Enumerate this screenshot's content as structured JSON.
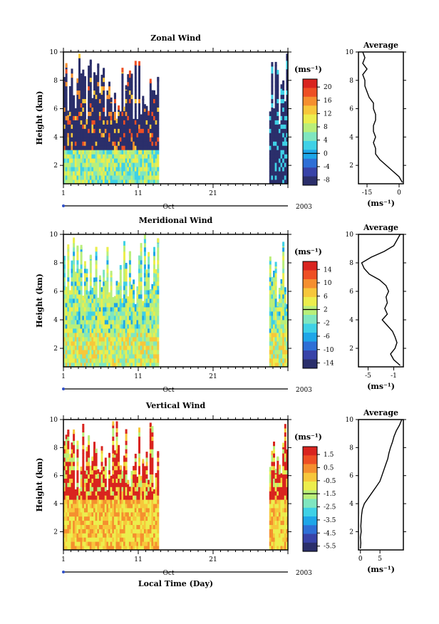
{
  "figure": {
    "x_axis_label": "Local Time (Day)",
    "month_label": "Oct",
    "year_label": "2003",
    "x_ticks": [
      "1",
      "11",
      "21"
    ]
  },
  "chart_data": [
    {
      "type": "heatmap",
      "title": "Zonal Wind",
      "ylabel": "Height (km)",
      "y_ticks": [
        "2",
        "4",
        "6",
        "8",
        "10"
      ],
      "ylim": [
        0.7,
        10
      ],
      "xlim": [
        1,
        31
      ],
      "data_coverage_days": [
        [
          1,
          13.7
        ],
        [
          28.5,
          31
        ]
      ],
      "colorbar": {
        "unit": "(ms⁻¹)",
        "ticks": [
          "20",
          "16",
          "12",
          "8",
          "4",
          "0",
          "-4",
          "-8"
        ],
        "range": [
          -10,
          22
        ]
      },
      "profile": {
        "title": "Average",
        "xlabel": "(ms⁻¹)",
        "x_ticks": [
          "-15",
          "0"
        ],
        "y_ticks": [
          "2",
          "4",
          "6",
          "8",
          "10"
        ],
        "xlim": [
          -19,
          2
        ],
        "heights": [
          0.8,
          1.2,
          1.6,
          2.0,
          2.4,
          2.8,
          3.2,
          3.6,
          4.0,
          4.4,
          4.8,
          5.2,
          5.6,
          6.0,
          6.4,
          6.8,
          7.2,
          7.6,
          8.0,
          8.4,
          8.8,
          9.2,
          9.6,
          10.0
        ],
        "values": [
          1.5,
          0,
          -3,
          -6,
          -9,
          -11,
          -11,
          -12,
          -11,
          -12,
          -12,
          -11,
          -11,
          -12,
          -12,
          -14,
          -15,
          -16,
          -16,
          -17,
          -15,
          -17,
          -16,
          -17
        ]
      }
    },
    {
      "type": "heatmap",
      "title": "Meridional Wind",
      "ylabel": "Height (km)",
      "y_ticks": [
        "2",
        "4",
        "6",
        "8",
        "10"
      ],
      "ylim": [
        0.7,
        10
      ],
      "xlim": [
        1,
        31
      ],
      "data_coverage_days": [
        [
          1,
          13.7
        ],
        [
          28.5,
          31
        ]
      ],
      "colorbar": {
        "unit": "(ms⁻¹)",
        "ticks": [
          "14",
          "10",
          "6",
          "2",
          "-2",
          "-6",
          "-10",
          "-14"
        ],
        "range": [
          -16,
          16
        ]
      },
      "profile": {
        "title": "Average",
        "xlabel": "(ms⁻¹)",
        "x_ticks": [
          "-5",
          "-1"
        ],
        "y_ticks": [
          "2",
          "4",
          "6",
          "8",
          "10"
        ],
        "xlim": [
          -6.5,
          0.5
        ],
        "heights": [
          0.8,
          1.2,
          1.6,
          2.0,
          2.4,
          2.8,
          3.2,
          3.6,
          4.0,
          4.4,
          4.8,
          5.2,
          5.6,
          6.0,
          6.4,
          6.8,
          7.2,
          7.6,
          8.0,
          8.4,
          8.8,
          9.2,
          9.6,
          10.0
        ],
        "values": [
          0,
          -1,
          -1.5,
          -0.8,
          -0.5,
          -0.8,
          -1.2,
          -2,
          -2.8,
          -2.0,
          -2.4,
          -2.0,
          -2.2,
          -1.8,
          -2.2,
          -3.2,
          -4.8,
          -5.6,
          -6.0,
          -4.5,
          -2.5,
          -1.0,
          -0.5,
          0
        ]
      }
    },
    {
      "type": "heatmap",
      "title": "Vertical Wind",
      "ylabel": "Height (km)",
      "y_ticks": [
        "2",
        "4",
        "6",
        "8",
        "10"
      ],
      "ylim": [
        0.7,
        10
      ],
      "xlim": [
        1,
        31
      ],
      "data_coverage_days": [
        [
          1,
          13.7
        ],
        [
          28.5,
          31
        ]
      ],
      "colorbar": {
        "unit": "(ms⁻¹)",
        "ticks": [
          "1.5",
          "0.5",
          "-0.5",
          "-1.5",
          "-2.5",
          "-3.5",
          "-4.5",
          "-5.5"
        ],
        "range": [
          -6,
          2
        ]
      },
      "profile": {
        "title": "Average",
        "xlabel": "(ms⁻¹)",
        "x_ticks": [
          "0",
          "5"
        ],
        "y_ticks": [
          "2",
          "4",
          "6",
          "8",
          "10"
        ],
        "xlim": [
          -0.5,
          11
        ],
        "heights": [
          0.8,
          1.2,
          1.6,
          2.0,
          2.4,
          2.8,
          3.2,
          3.6,
          4.0,
          4.4,
          4.8,
          5.2,
          5.6,
          6.0,
          6.4,
          6.8,
          7.2,
          7.6,
          8.0,
          8.4,
          8.8,
          9.2,
          9.6,
          10.0
        ],
        "values": [
          0,
          0.1,
          0,
          0.2,
          0.1,
          0.2,
          0.3,
          0.5,
          1,
          2,
          3,
          4,
          5,
          5.5,
          6,
          6.5,
          7,
          7.3,
          7.7,
          8.2,
          8.6,
          9.2,
          10,
          10.6
        ]
      }
    }
  ]
}
